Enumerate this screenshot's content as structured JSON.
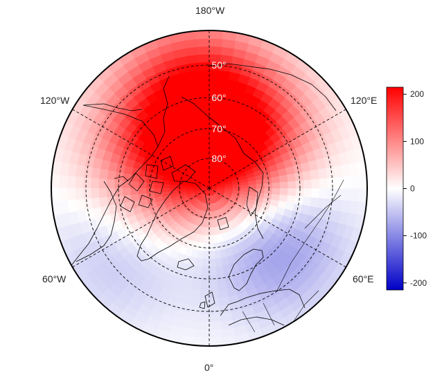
{
  "map": {
    "projection": "north-polar-stereographic",
    "lon_labels": {
      "top": "180°W",
      "bottom": "0°",
      "upper_left": "120°W",
      "upper_right": "120°E",
      "lower_left": "60°W",
      "lower_right": "60°E"
    },
    "lat_labels": [
      "50°",
      "60°",
      "70°",
      "80°"
    ],
    "lat_label_color": "#f4f4f4",
    "graticule_style": "dashed",
    "field": {
      "description_hidden": false,
      "maxima": [
        {
          "lon": 150,
          "lat": 72,
          "value": 210
        },
        {
          "lon": -120,
          "lat": 72,
          "value": 150
        },
        {
          "lon": -170,
          "lat": 55,
          "value": 140
        }
      ],
      "minima": [
        {
          "lon": 50,
          "lat": 62,
          "value": -95
        },
        {
          "lon": -55,
          "lat": 55,
          "value": -55
        }
      ]
    }
  },
  "colorbar": {
    "ticks": [
      "200",
      "100",
      "0",
      "-100",
      "-200"
    ],
    "range": [
      -215,
      215
    ],
    "colors": {
      "low": "#0000c8",
      "mid": "#ffffff",
      "high": "#ff0000"
    }
  }
}
